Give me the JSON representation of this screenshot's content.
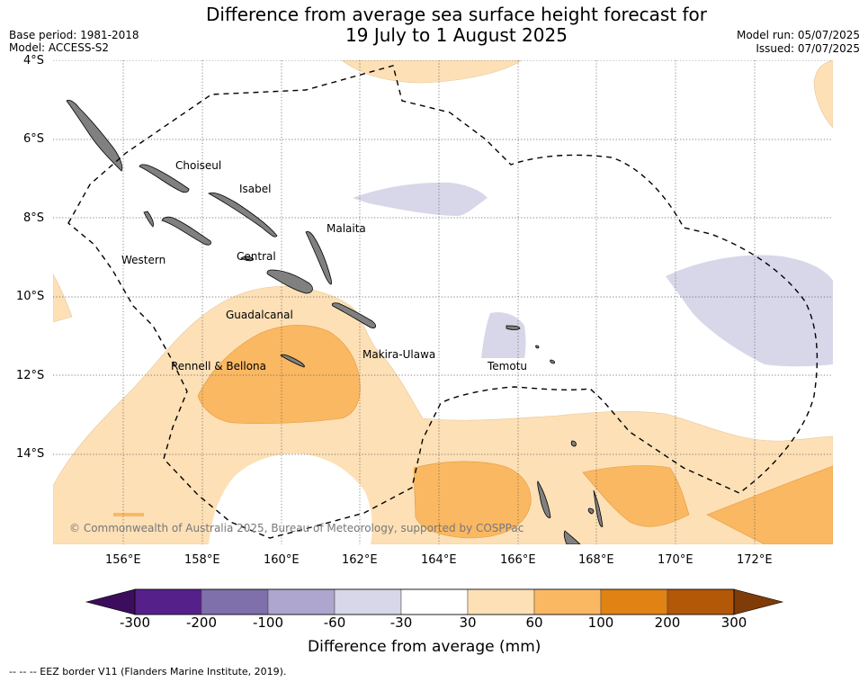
{
  "header": {
    "title_line1": "Difference from average sea surface height forecast for",
    "title_line2": "19 July to 1 August 2025",
    "base_period": "Base period: 1981-2018",
    "model": "Model: ACCESS-S2",
    "model_run": "Model run: 05/07/2025",
    "issued": "Issued: 07/07/2025"
  },
  "map": {
    "lat_labels": [
      "4°S",
      "6°S",
      "8°S",
      "10°S",
      "12°S",
      "14°S"
    ],
    "lon_labels": [
      "156°E",
      "158°E",
      "160°E",
      "162°E",
      "164°E",
      "166°E",
      "168°E",
      "170°E",
      "172°E"
    ],
    "places": [
      "Choiseul",
      "Isabel",
      "Malaita",
      "Western",
      "Central",
      "Guadalcanal",
      "Makira-Ulawa",
      "Rennell & Bellona",
      "Temotu"
    ],
    "copyright": "© Commonwealth of Australia 2025, Bureau of Meteorology, supported by COSPPac",
    "land_color": "#808080",
    "colors": {
      "neg_60_30": "#d7d7e9",
      "pos_30_60": "#fde0b6",
      "pos_60_100": "#fab862"
    }
  },
  "colorbar": {
    "ticks": [
      "-300",
      "-200",
      "-100",
      "-60",
      "-30",
      "30",
      "60",
      "100",
      "200",
      "300"
    ],
    "colors": [
      "#3b0d5c",
      "#56208a",
      "#7f6fab",
      "#aea6cf",
      "#d7d7e9",
      "#ffffff",
      "#fde0b6",
      "#fab862",
      "#e08214",
      "#b35806",
      "#7f3b08"
    ],
    "label": "Difference from average (mm)"
  },
  "footer": {
    "eez_note": "--  --  -- EEZ border V11 (Flanders Marine Institute, 2019)."
  }
}
